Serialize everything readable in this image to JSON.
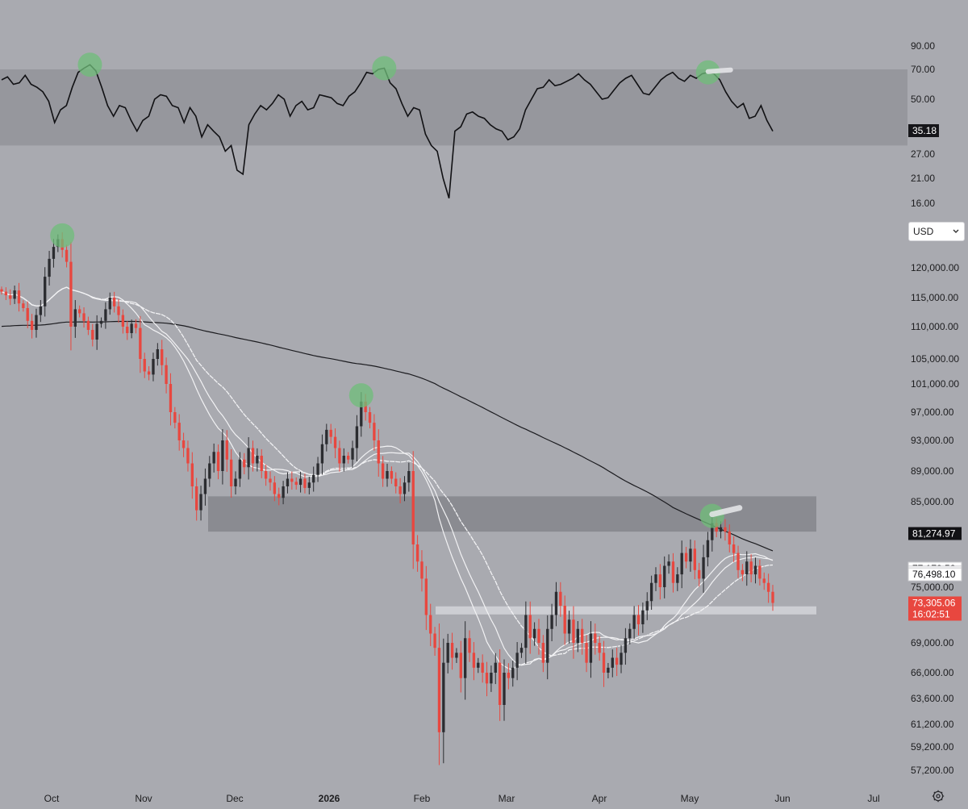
{
  "chart_data": [
    {
      "type": "line",
      "name": "oscillator",
      "y_ticks": [
        "90.00",
        "70.00",
        "50.00",
        "27.00",
        "21.00",
        "16.00"
      ],
      "current_value_label": "35.18",
      "band": [
        30,
        70
      ],
      "ylim": [
        16,
        90
      ],
      "series": [
        {
          "values": [
            63,
            65,
            60,
            61,
            66,
            60,
            58,
            55,
            49,
            39,
            45,
            47,
            58,
            68,
            71,
            74,
            69,
            58,
            47,
            42,
            47,
            46,
            40,
            35,
            40,
            42,
            50,
            53,
            52,
            47,
            46,
            39,
            46,
            42,
            33,
            38,
            35,
            33,
            28,
            30,
            23,
            22,
            38,
            43,
            47,
            45,
            48,
            53,
            50,
            42,
            47,
            49,
            45,
            46,
            53,
            52,
            51,
            48,
            47,
            52,
            55,
            61,
            68,
            67,
            70,
            71,
            61,
            57,
            48,
            42,
            46,
            45,
            34,
            30,
            28,
            21,
            17,
            35,
            37,
            43,
            44,
            42,
            41,
            38,
            36,
            35,
            32,
            33,
            36,
            45,
            50,
            57,
            58,
            63,
            59,
            60,
            62,
            64,
            67,
            63,
            60,
            55,
            50,
            51,
            56,
            61,
            64,
            66,
            60,
            54,
            53,
            58,
            63,
            66,
            68,
            64,
            62,
            66,
            64,
            67,
            68,
            67,
            63,
            55,
            49,
            46,
            48,
            41,
            42,
            47,
            40,
            35
          ]
        }
      ]
    },
    {
      "type": "candlestick",
      "name": "price",
      "currency": "USD",
      "x_ticks": [
        {
          "label": "Oct",
          "bold": false
        },
        {
          "label": "Nov",
          "bold": false
        },
        {
          "label": "Dec",
          "bold": false
        },
        {
          "label": "2026",
          "bold": true
        },
        {
          "label": "Feb",
          "bold": false
        },
        {
          "label": "Mar",
          "bold": false
        },
        {
          "label": "Apr",
          "bold": false
        },
        {
          "label": "May",
          "bold": false
        },
        {
          "label": "Jun",
          "bold": false
        },
        {
          "label": "Jul",
          "bold": false
        }
      ],
      "y_ticks": [
        "120,000.00",
        "115,000.00",
        "110,000.00",
        "105,000.00",
        "101,000.00",
        "97,000.00",
        "93,000.00",
        "89,000.00",
        "85,000.00",
        "75,000.00",
        "69,000.00",
        "66,000.00",
        "63,600.00",
        "61,200.00",
        "59,200.00",
        "57,200.00"
      ],
      "closes": [
        116000,
        115400,
        114800,
        116200,
        114000,
        113200,
        111000,
        109500,
        112000,
        113500,
        118500,
        121500,
        123500,
        124800,
        123000,
        121000,
        110000,
        113000,
        112300,
        111000,
        109500,
        108000,
        110500,
        111000,
        113000,
        115000,
        113500,
        112000,
        110000,
        109000,
        110500,
        109800,
        105000,
        103000,
        102500,
        105000,
        106500,
        104000,
        101000,
        97000,
        95500,
        93000,
        92000,
        90000,
        87000,
        84000,
        86000,
        88000,
        90000,
        91500,
        89000,
        93000,
        90500,
        87000,
        88000,
        90500,
        89500,
        92000,
        90000,
        91000,
        89000,
        88000,
        87500,
        86000,
        85500,
        87000,
        88000,
        87600,
        87200,
        88000,
        86800,
        87500,
        88500,
        90000,
        92500,
        94500,
        93500,
        92000,
        90000,
        91000,
        90500,
        92000,
        95000,
        98500,
        97000,
        95500,
        93000,
        90000,
        88000,
        89000,
        88000,
        87000,
        86000,
        87500,
        89000,
        80000,
        78000,
        76000,
        72000,
        70000,
        68500,
        60500,
        67000,
        69000,
        67500,
        68000,
        65500,
        69500,
        68000,
        66500,
        67000,
        66000,
        65000,
        66000,
        67000,
        63000,
        66000,
        65500,
        66500,
        68000,
        68500,
        72000,
        69500,
        70500,
        69000,
        67000,
        70500,
        72000,
        74500,
        73000,
        70000,
        71500,
        69000,
        70500,
        69000,
        67000,
        70000,
        69000,
        68000,
        66000,
        66500,
        67500,
        66800,
        68000,
        69500,
        70500,
        72000,
        71000,
        72500,
        73500,
        75500,
        76500,
        75000,
        77500,
        78000,
        75500,
        76500,
        79000,
        78000,
        79500,
        77000,
        76000,
        78500,
        80500,
        82500,
        81500,
        82000,
        81500,
        80000,
        79000,
        77000,
        76500,
        78000,
        76500,
        77500,
        76000,
        75500,
        74500,
        73305
      ],
      "last_price_label": "73,305.06",
      "countdown_label": "16:02:51",
      "ma_labels": [
        "81,274.97",
        "77,170.52",
        "76,718.66",
        "76,498.10"
      ],
      "resistance_zone": [
        81500,
        85700
      ],
      "support_level": 72500
    }
  ],
  "currency_selector": {
    "label": "USD"
  },
  "colors": {
    "background": "#a9aab0",
    "band": "#93949a",
    "up_candle": "#2b2c30",
    "down_candle": "#e8473f",
    "ma_black": "#1c1c20",
    "ma_white": "#f2f2f4",
    "highlight_circle": "#6fbe7a",
    "last_price_tag": "#e8473f"
  },
  "icons": {
    "settings": "gear-icon",
    "dropdown": "chevron-down-icon"
  }
}
